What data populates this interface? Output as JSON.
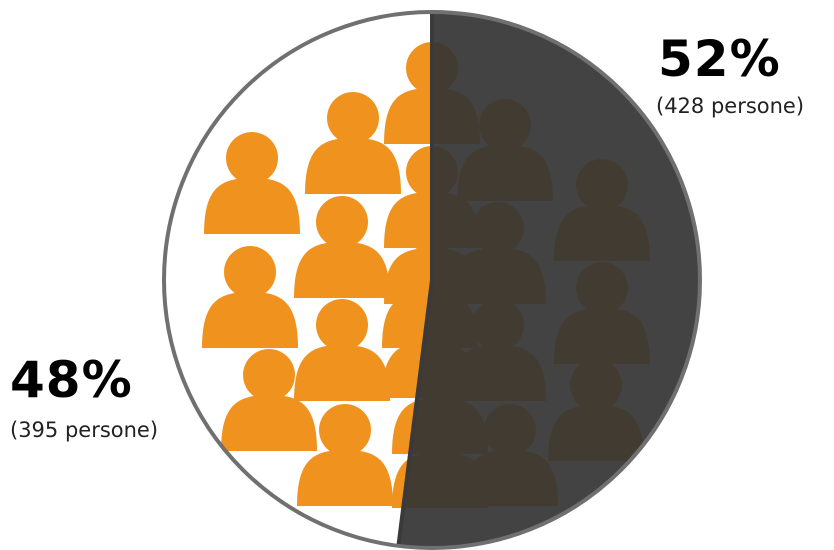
{
  "chart_data": {
    "type": "pie",
    "slices": [
      {
        "label": "48%",
        "value": 48,
        "count_label": "(395 persone)",
        "color": "#ffffff"
      },
      {
        "label": "52%",
        "value": 52,
        "count_label": "(428 persone)",
        "color": "#424242"
      }
    ]
  },
  "colors": {
    "person_icon": "#F0931E",
    "dark_overlay": "#333333",
    "outline": "#707070",
    "divider": "#3a3a3a"
  },
  "icon": "person-icon"
}
